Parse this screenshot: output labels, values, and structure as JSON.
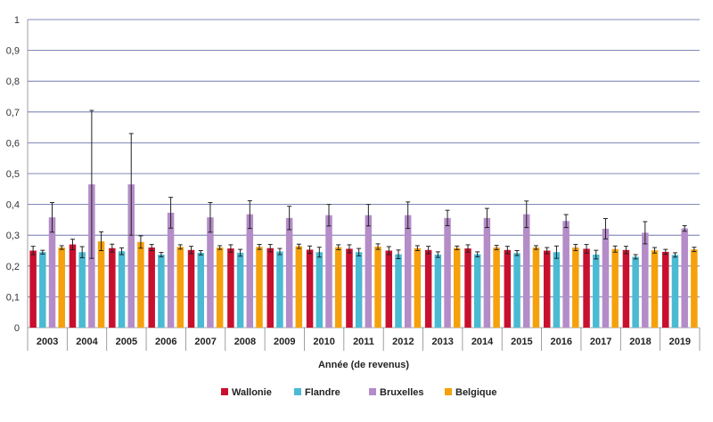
{
  "chart_data": {
    "type": "bar",
    "title": "",
    "xlabel": "Année (de revenus)",
    "ylabel": "",
    "ylim": [
      0,
      1
    ],
    "yticks": [
      0,
      0.1,
      0.2,
      0.3,
      0.4,
      0.5,
      0.6,
      0.7,
      0.8,
      0.9,
      1
    ],
    "ytick_labels": [
      "0",
      "0,1",
      "0,2",
      "0,3",
      "0,4",
      "0,5",
      "0,6",
      "0,7",
      "0,8",
      "0,9",
      "1"
    ],
    "grid": true,
    "legend_position": "bottom",
    "categories": [
      "2003",
      "2004",
      "2005",
      "2006",
      "2007",
      "2008",
      "2009",
      "2010",
      "2011",
      "2012",
      "2013",
      "2014",
      "2015",
      "2016",
      "2017",
      "2018",
      "2019"
    ],
    "series": [
      {
        "name": "Wallonie",
        "color": "#c8102e",
        "values": [
          0.25,
          0.27,
          0.258,
          0.26,
          0.252,
          0.257,
          0.258,
          0.253,
          0.256,
          0.25,
          0.252,
          0.257,
          0.252,
          0.25,
          0.256,
          0.252,
          0.246
        ],
        "err_low": [
          0.237,
          0.253,
          0.245,
          0.25,
          0.24,
          0.245,
          0.246,
          0.241,
          0.243,
          0.237,
          0.24,
          0.245,
          0.24,
          0.24,
          0.242,
          0.24,
          0.238
        ],
        "err_high": [
          0.264,
          0.287,
          0.271,
          0.27,
          0.264,
          0.269,
          0.27,
          0.265,
          0.269,
          0.263,
          0.264,
          0.269,
          0.264,
          0.26,
          0.27,
          0.264,
          0.254
        ]
      },
      {
        "name": "Flandre",
        "color": "#4bbad3",
        "values": [
          0.245,
          0.245,
          0.248,
          0.237,
          0.243,
          0.243,
          0.247,
          0.245,
          0.245,
          0.238,
          0.237,
          0.238,
          0.242,
          0.245,
          0.237,
          0.23,
          0.236
        ],
        "err_low": [
          0.239,
          0.227,
          0.237,
          0.23,
          0.236,
          0.232,
          0.237,
          0.229,
          0.233,
          0.224,
          0.228,
          0.23,
          0.234,
          0.225,
          0.223,
          0.223,
          0.229
        ],
        "err_high": [
          0.251,
          0.263,
          0.259,
          0.244,
          0.25,
          0.254,
          0.257,
          0.261,
          0.257,
          0.252,
          0.246,
          0.246,
          0.25,
          0.265,
          0.251,
          0.237,
          0.243
        ]
      },
      {
        "name": "Bruxelles",
        "color": "#b48cc8",
        "values": [
          0.358,
          0.465,
          0.465,
          0.373,
          0.358,
          0.368,
          0.356,
          0.365,
          0.365,
          0.365,
          0.356,
          0.356,
          0.368,
          0.346,
          0.321,
          0.308,
          0.322
        ],
        "err_low": [
          0.31,
          0.225,
          0.3,
          0.323,
          0.31,
          0.322,
          0.318,
          0.33,
          0.33,
          0.322,
          0.331,
          0.325,
          0.325,
          0.325,
          0.288,
          0.272,
          0.313
        ],
        "err_high": [
          0.406,
          0.705,
          0.63,
          0.423,
          0.406,
          0.412,
          0.394,
          0.4,
          0.4,
          0.408,
          0.381,
          0.387,
          0.411,
          0.367,
          0.354,
          0.344,
          0.331
        ]
      },
      {
        "name": "Belgique",
        "color": "#f5a10c",
        "values": [
          0.26,
          0.28,
          0.278,
          0.262,
          0.26,
          0.262,
          0.264,
          0.261,
          0.263,
          0.258,
          0.259,
          0.26,
          0.26,
          0.26,
          0.255,
          0.251,
          0.254
        ],
        "err_low": [
          0.254,
          0.25,
          0.258,
          0.255,
          0.254,
          0.254,
          0.257,
          0.253,
          0.254,
          0.25,
          0.253,
          0.253,
          0.254,
          0.25,
          0.245,
          0.242,
          0.247
        ],
        "err_high": [
          0.266,
          0.311,
          0.298,
          0.269,
          0.266,
          0.27,
          0.271,
          0.269,
          0.272,
          0.266,
          0.265,
          0.267,
          0.266,
          0.27,
          0.265,
          0.26,
          0.261
        ]
      }
    ]
  }
}
